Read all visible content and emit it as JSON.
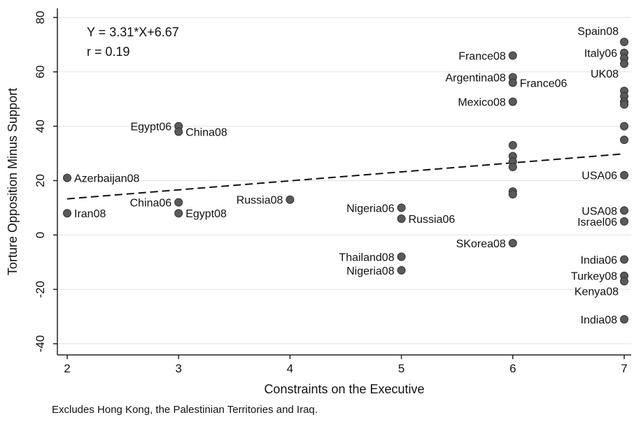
{
  "chart_data": {
    "type": "scatter",
    "xlabel": "Constraints on the Executive",
    "ylabel": "Torture Opposition Minus Support",
    "xlim": [
      2,
      7
    ],
    "ylim": [
      -45,
      82
    ],
    "xticks": [
      2,
      3,
      4,
      5,
      6,
      7
    ],
    "yticks": [
      80,
      60,
      40,
      20,
      0,
      -20,
      -40
    ],
    "grid": true,
    "equation": "Y = 3.31*X+6.67",
    "r_text": "r = 0.19",
    "fit": {
      "slope": 3.31,
      "intercept": 6.67
    },
    "note": "Excludes Hong Kong, the Palestinian Territories and Iraq.",
    "points": [
      {
        "x": 2,
        "y": 21,
        "label": "Azerbaijan08",
        "pos": "right"
      },
      {
        "x": 2,
        "y": 8,
        "label": "Iran08",
        "pos": "right"
      },
      {
        "x": 3,
        "y": 40,
        "label": "Egypt06",
        "pos": "left"
      },
      {
        "x": 3,
        "y": 38,
        "label": "China08",
        "pos": "right"
      },
      {
        "x": 3,
        "y": 12,
        "label": "China06",
        "pos": "left"
      },
      {
        "x": 3,
        "y": 8,
        "label": "Egypt08",
        "pos": "right"
      },
      {
        "x": 4,
        "y": 13,
        "label": "Russia08",
        "pos": "left"
      },
      {
        "x": 5,
        "y": 10,
        "label": "Nigeria06",
        "pos": "left"
      },
      {
        "x": 5,
        "y": 6,
        "label": "Russia06",
        "pos": "right"
      },
      {
        "x": 5,
        "y": -8,
        "label": "Thailand08",
        "pos": "left"
      },
      {
        "x": 5,
        "y": -13,
        "label": "Nigeria08",
        "pos": "left"
      },
      {
        "x": 6,
        "y": 66,
        "label": "France08",
        "pos": "left"
      },
      {
        "x": 6,
        "y": 58,
        "label": "Argentina08",
        "pos": "left"
      },
      {
        "x": 6,
        "y": 56,
        "label": "France06",
        "pos": "right"
      },
      {
        "x": 6,
        "y": 49,
        "label": "Mexico08",
        "pos": "left"
      },
      {
        "x": 6,
        "y": 33,
        "label": ""
      },
      {
        "x": 6,
        "y": 29,
        "label": ""
      },
      {
        "x": 6,
        "y": 27,
        "label": ""
      },
      {
        "x": 6,
        "y": 25,
        "label": ""
      },
      {
        "x": 6,
        "y": 16,
        "label": ""
      },
      {
        "x": 6,
        "y": 15,
        "label": ""
      },
      {
        "x": 6,
        "y": -3,
        "label": "SKorea08",
        "pos": "left"
      },
      {
        "x": 7,
        "y": 71,
        "label": "Spain08",
        "pos": "above-left"
      },
      {
        "x": 7,
        "y": 67,
        "label": "Italy06",
        "pos": "left"
      },
      {
        "x": 7,
        "y": 65,
        "label": ""
      },
      {
        "x": 7,
        "y": 63,
        "label": "UK08",
        "pos": "below-left"
      },
      {
        "x": 7,
        "y": 53,
        "label": ""
      },
      {
        "x": 7,
        "y": 51,
        "label": ""
      },
      {
        "x": 7,
        "y": 49,
        "label": ""
      },
      {
        "x": 7,
        "y": 48,
        "label": ""
      },
      {
        "x": 7,
        "y": 40,
        "label": ""
      },
      {
        "x": 7,
        "y": 35,
        "label": ""
      },
      {
        "x": 7,
        "y": 22,
        "label": "USA06",
        "pos": "left"
      },
      {
        "x": 7,
        "y": 9,
        "label": "USA08",
        "pos": "left"
      },
      {
        "x": 7,
        "y": 5,
        "label": "Israel06",
        "pos": "left"
      },
      {
        "x": 7,
        "y": -9,
        "label": "India06",
        "pos": "left"
      },
      {
        "x": 7,
        "y": -15,
        "label": "Turkey08",
        "pos": "left"
      },
      {
        "x": 7,
        "y": -17,
        "label": "Kenya08",
        "pos": "below-left"
      },
      {
        "x": 7,
        "y": -31,
        "label": "India08",
        "pos": "left"
      }
    ]
  }
}
